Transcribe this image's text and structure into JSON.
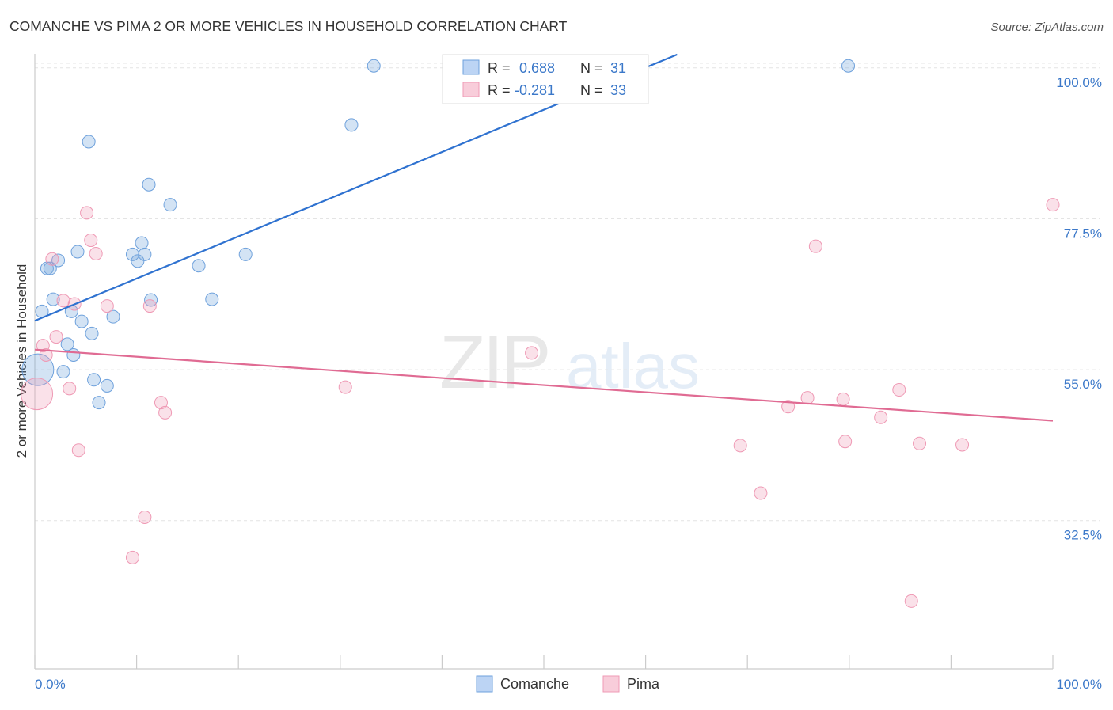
{
  "header": {
    "title": "COMANCHE VS PIMA 2 OR MORE VEHICLES IN HOUSEHOLD CORRELATION CHART",
    "source": "Source: ZipAtlas.com"
  },
  "watermark": {
    "zip": "ZIP",
    "atlas": "atlas"
  },
  "legend_top": {
    "rows": [
      {
        "r_label": "R =",
        "r_value": "0.688",
        "n_label": "N =",
        "n_value": "31",
        "color": "#6ea1dc"
      },
      {
        "r_label": "R =",
        "r_value": "-0.281",
        "n_label": "N =",
        "n_value": "33",
        "color": "#ef9ab5"
      }
    ]
  },
  "legend_bottom": {
    "items": [
      "Comanche",
      "Pima"
    ]
  },
  "chart_data": {
    "type": "scatter",
    "ylabel": "2 or more Vehicles in Household",
    "xlabel": "",
    "x_tick_labels": {
      "left": "0.0%",
      "right": "100.0%"
    },
    "y_tick_labels": [
      "100.0%",
      "77.5%",
      "55.0%",
      "32.5%"
    ],
    "y_ticks": [
      100.0,
      77.5,
      55.0,
      32.5
    ],
    "xlim": [
      0,
      100
    ],
    "ylim": [
      10.4,
      102.1
    ],
    "grid": true,
    "colors": {
      "comanche": "#3b78c9",
      "pima": "#e06b93",
      "value_text": "#3b78c9"
    },
    "series": [
      {
        "name": "Comanche",
        "color": "#6ea1dc",
        "trend": {
          "x1": 0,
          "y1": 62.3,
          "x2": 63.1,
          "y2": 102.0,
          "color": "#2f72d0"
        },
        "points": [
          {
            "x": 0.3,
            "y": 55.0,
            "big": true
          },
          {
            "x": 0.7,
            "y": 63.7
          },
          {
            "x": 1.2,
            "y": 70.1
          },
          {
            "x": 1.5,
            "y": 70.1
          },
          {
            "x": 1.8,
            "y": 65.5
          },
          {
            "x": 2.3,
            "y": 71.3
          },
          {
            "x": 2.8,
            "y": 54.7
          },
          {
            "x": 3.2,
            "y": 58.8
          },
          {
            "x": 3.6,
            "y": 63.7
          },
          {
            "x": 3.8,
            "y": 57.2
          },
          {
            "x": 4.2,
            "y": 72.6
          },
          {
            "x": 4.6,
            "y": 62.2
          },
          {
            "x": 5.3,
            "y": 89.0
          },
          {
            "x": 5.6,
            "y": 60.4
          },
          {
            "x": 5.8,
            "y": 53.5
          },
          {
            "x": 6.3,
            "y": 50.1
          },
          {
            "x": 7.1,
            "y": 52.6
          },
          {
            "x": 7.7,
            "y": 62.9
          },
          {
            "x": 9.6,
            "y": 72.2
          },
          {
            "x": 10.1,
            "y": 71.2
          },
          {
            "x": 10.5,
            "y": 73.9
          },
          {
            "x": 10.8,
            "y": 72.2
          },
          {
            "x": 11.2,
            "y": 82.6
          },
          {
            "x": 11.4,
            "y": 65.4
          },
          {
            "x": 13.3,
            "y": 79.6
          },
          {
            "x": 16.1,
            "y": 70.5
          },
          {
            "x": 17.4,
            "y": 65.5
          },
          {
            "x": 20.7,
            "y": 72.2
          },
          {
            "x": 31.1,
            "y": 91.5
          },
          {
            "x": 33.3,
            "y": 100.3
          },
          {
            "x": 79.9,
            "y": 100.3
          }
        ]
      },
      {
        "name": "Pima",
        "color": "#ef9ab5",
        "trend": {
          "x1": 0,
          "y1": 58.0,
          "x2": 100,
          "y2": 47.4,
          "color": "#e06b93"
        },
        "points": [
          {
            "x": 0.2,
            "y": 51.4,
            "big": true
          },
          {
            "x": 0.8,
            "y": 58.6
          },
          {
            "x": 1.1,
            "y": 57.2
          },
          {
            "x": 1.7,
            "y": 71.5
          },
          {
            "x": 2.1,
            "y": 59.9
          },
          {
            "x": 2.8,
            "y": 65.3
          },
          {
            "x": 3.4,
            "y": 52.2
          },
          {
            "x": 3.9,
            "y": 64.8
          },
          {
            "x": 4.3,
            "y": 43.0
          },
          {
            "x": 5.1,
            "y": 78.4
          },
          {
            "x": 5.5,
            "y": 74.3
          },
          {
            "x": 6.0,
            "y": 72.3
          },
          {
            "x": 7.1,
            "y": 64.5
          },
          {
            "x": 9.6,
            "y": 27.0
          },
          {
            "x": 10.8,
            "y": 33.0
          },
          {
            "x": 11.3,
            "y": 64.5
          },
          {
            "x": 12.4,
            "y": 50.1
          },
          {
            "x": 12.8,
            "y": 48.6
          },
          {
            "x": 30.5,
            "y": 52.4
          },
          {
            "x": 48.8,
            "y": 57.5
          },
          {
            "x": 69.3,
            "y": 43.7
          },
          {
            "x": 71.3,
            "y": 36.6
          },
          {
            "x": 74.0,
            "y": 49.5
          },
          {
            "x": 75.9,
            "y": 50.8
          },
          {
            "x": 76.7,
            "y": 73.4
          },
          {
            "x": 79.4,
            "y": 50.6
          },
          {
            "x": 79.6,
            "y": 44.3
          },
          {
            "x": 83.1,
            "y": 47.9
          },
          {
            "x": 84.9,
            "y": 52.0
          },
          {
            "x": 86.1,
            "y": 20.5
          },
          {
            "x": 86.9,
            "y": 44.0
          },
          {
            "x": 91.1,
            "y": 43.8
          },
          {
            "x": 100.0,
            "y": 79.6
          }
        ]
      }
    ]
  }
}
